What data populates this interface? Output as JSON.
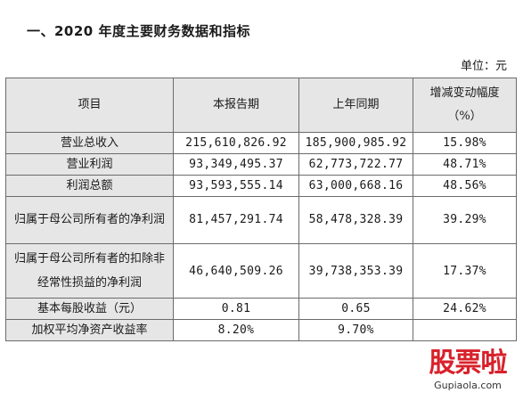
{
  "heading": "一、2020 年度主要财务数据和指标",
  "unit": "单位：元",
  "table": {
    "headers": [
      "项目",
      "本报告期",
      "上年同期",
      "增减变动幅度（%）"
    ],
    "rows": [
      {
        "label": "营业总收入",
        "current": "215,610,826.92",
        "prior": "185,900,985.92",
        "change": "15.98%"
      },
      {
        "label": "营业利润",
        "current": "93,349,495.37",
        "prior": "62,773,722.77",
        "change": "48.71%"
      },
      {
        "label": "利润总额",
        "current": "93,593,555.14",
        "prior": "63,000,668.16",
        "change": "48.56%"
      },
      {
        "label": "归属于母公司所有者的净利润",
        "current": "81,457,291.74",
        "prior": "58,478,328.39",
        "change": "39.29%"
      },
      {
        "label": "归属于母公司所有者的扣除非经常性损益的净利润",
        "current": "46,640,509.26",
        "prior": "39,738,353.39",
        "change": "17.37%"
      },
      {
        "label": "基本每股收益（元）",
        "current": "0.81",
        "prior": "0.65",
        "change": "24.62%"
      },
      {
        "label": "加权平均净资产收益率",
        "current": "8.20%",
        "prior": "9.70%",
        "change": ""
      }
    ]
  },
  "watermark": {
    "text": "股票啦",
    "url": "Gupiaola.com",
    "color": "#d8212b"
  }
}
